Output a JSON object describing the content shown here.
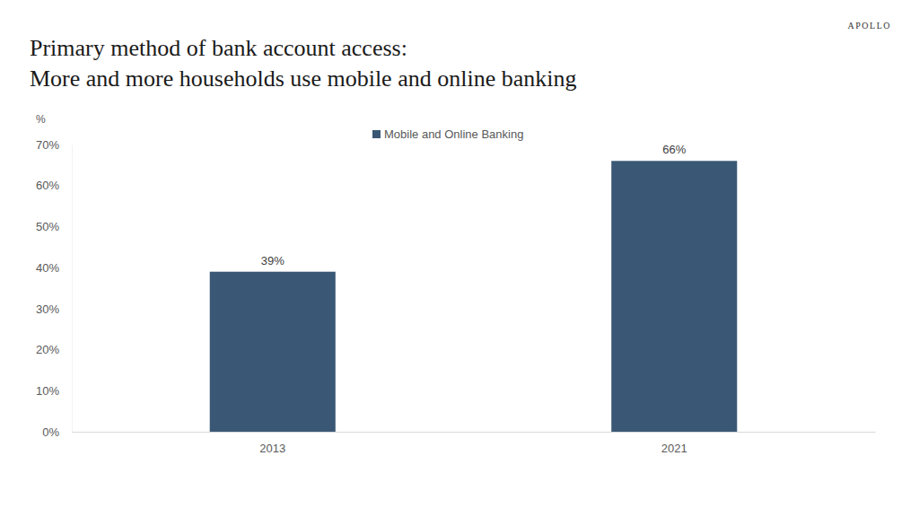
{
  "chart_data": {
    "type": "bar",
    "title": "Primary method of bank account access:",
    "subtitle": "More and more households use mobile and online banking",
    "annotations": [
      "APOLLO"
    ],
    "y_label": "%",
    "categories": [
      "2013",
      "2021"
    ],
    "series": [
      {
        "name": "Mobile and Online Banking",
        "color": "#3a5875",
        "values": [
          39,
          66
        ],
        "value_labels": [
          "39%",
          "66%"
        ]
      }
    ],
    "ylim": [
      0,
      70
    ],
    "yticks": [
      {
        "value": 0,
        "label": "0%"
      },
      {
        "value": 10,
        "label": "10%"
      },
      {
        "value": 20,
        "label": "20%"
      },
      {
        "value": 30,
        "label": "30%"
      },
      {
        "value": 40,
        "label": "40%"
      },
      {
        "value": 50,
        "label": "50%"
      },
      {
        "value": 60,
        "label": "60%"
      },
      {
        "value": 70,
        "label": "70%"
      }
    ],
    "grid": false,
    "legend": "top",
    "data_labels": true
  }
}
